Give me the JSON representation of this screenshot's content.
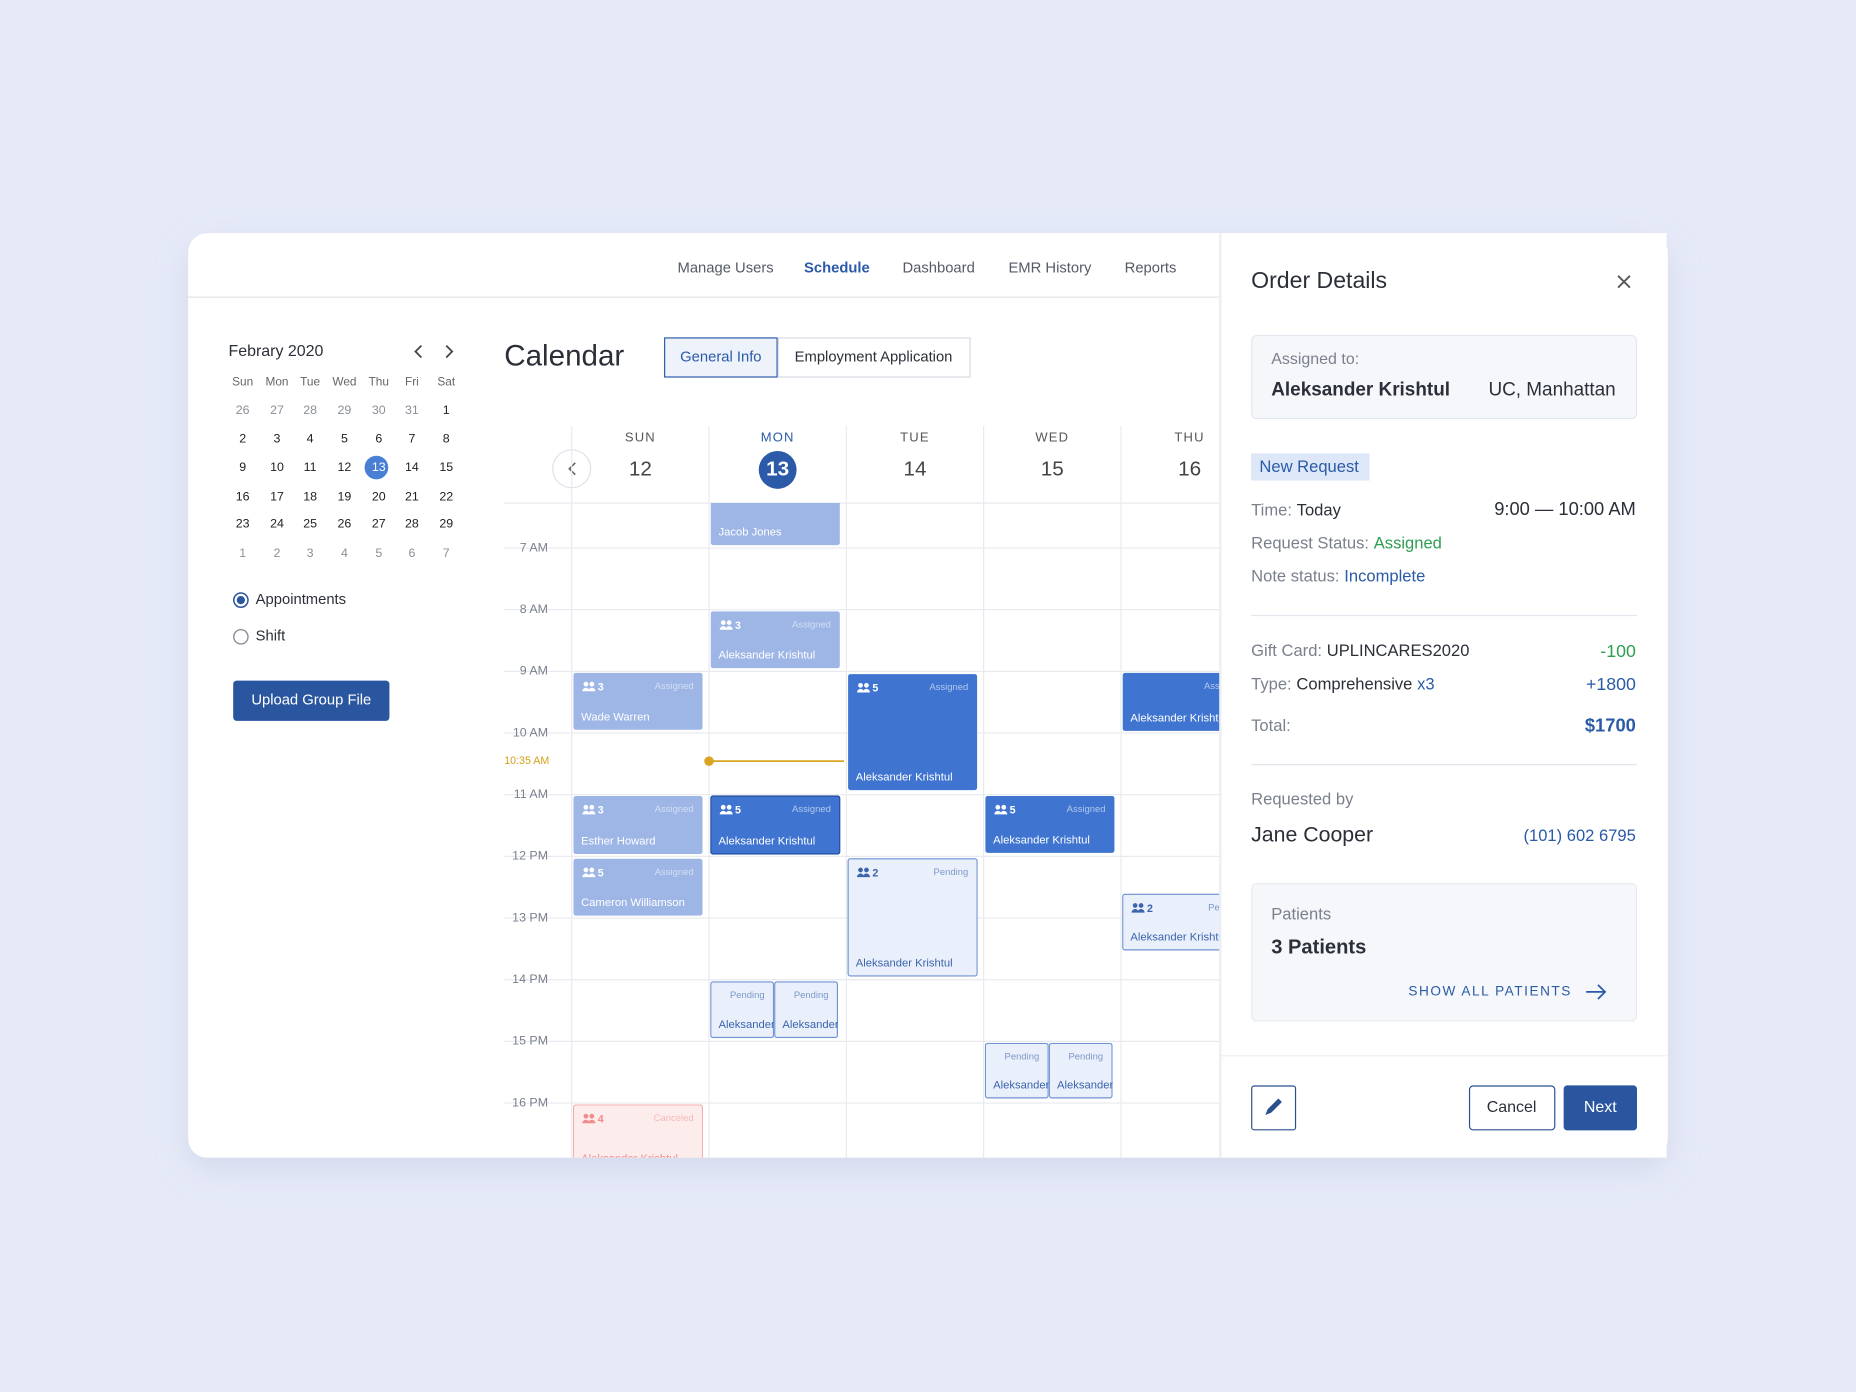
{
  "nav": [
    "Manage Users",
    "Schedule",
    "Dashboard",
    "EMR History",
    "Reports"
  ],
  "sidebar": {
    "month": "Febrary 2020",
    "weekdays": [
      "Sun",
      "Mon",
      "Tue",
      "Wed",
      "Thu",
      "Fri",
      "Sat"
    ],
    "weeks": [
      [
        26,
        27,
        28,
        29,
        30,
        31,
        1
      ],
      [
        2,
        3,
        4,
        5,
        6,
        7,
        8
      ],
      [
        9,
        10,
        11,
        12,
        13,
        14,
        15
      ],
      [
        16,
        17,
        18,
        19,
        20,
        21,
        22
      ],
      [
        23,
        24,
        25,
        26,
        27,
        28,
        29
      ],
      [
        1,
        2,
        3,
        4,
        5,
        6,
        7
      ]
    ],
    "options": [
      "Appointments",
      "Shift"
    ],
    "upload_button": "Upload Group File"
  },
  "calendar": {
    "title": "Calendar",
    "tabs": [
      "General Info",
      "Employment Application"
    ],
    "days": [
      {
        "name": "SUN",
        "date": "12"
      },
      {
        "name": "MON",
        "date": "13"
      },
      {
        "name": "TUE",
        "date": "14"
      },
      {
        "name": "WED",
        "date": "15"
      },
      {
        "name": "THU",
        "date": "16"
      }
    ],
    "hours": [
      "7 AM",
      "8 AM",
      "9 AM",
      "10 AM",
      "11 AM",
      "12 PM",
      "13 PM",
      "14 PM",
      "15 PM",
      "16 PM"
    ],
    "current_time": "10:35 AM",
    "events": [
      {
        "name": "Jacob Jones"
      },
      {
        "count": "3",
        "status": "Assigned",
        "name": "Aleksander Krishtul"
      },
      {
        "count": "3",
        "status": "Assigned",
        "name": "Wade Warren"
      },
      {
        "count": "5",
        "status": "Assigned",
        "name": "Aleksander Krishtul"
      },
      {
        "status": "Assigned",
        "name": "Aleksander Krishtul"
      },
      {
        "count": "3",
        "status": "Assigned",
        "name": "Esther Howard"
      },
      {
        "count": "5",
        "status": "Assigned",
        "name": "Aleksander Krishtul"
      },
      {
        "count": "5",
        "status": "Assigned",
        "name": "Aleksander Krishtul"
      },
      {
        "count": "5",
        "status": "Assigned",
        "name": "Cameron Williamson"
      },
      {
        "count": "2",
        "status": "Pending",
        "name": "Aleksander Krishtul"
      },
      {
        "count": "2",
        "status": "Pending",
        "name": "Aleksander Krishtul"
      },
      {
        "status": "Pending",
        "name": "Aleksander Krishtul"
      },
      {
        "status": "Pending",
        "name": "Aleksander Krishtul"
      },
      {
        "status": "Pending",
        "name": "Aleksander Krishtul"
      },
      {
        "status": "Pending",
        "name": "Aleksander Krishtul"
      },
      {
        "count": "4",
        "status": "Canceled",
        "name": "Aleksander Krishtul"
      }
    ]
  },
  "order": {
    "title": "Order Details",
    "assigned_label": "Assigned to:",
    "assignee": "Aleksander Krishtul",
    "location": "UC, Manhattan",
    "badge": "New Request",
    "time_label": "Time:",
    "time_value": "Today",
    "time_range": "9:00 — 10:00 AM",
    "request_status_label": "Request Status:",
    "request_status": "Assigned",
    "note_status_label": "Note status:",
    "note_status": "Incomplete",
    "gift_card_label": "Gift Card:",
    "gift_card": "UPLINCARES2020",
    "gift_card_amount": "-100",
    "type_label": "Type:",
    "type": "Comprehensive",
    "type_qty": "x3",
    "type_amount": "+1800",
    "total_label": "Total:",
    "total": "$1700",
    "requested_by_label": "Requested by",
    "requester": "Jane Cooper",
    "phone": "(101) 602 6795",
    "patients_label": "Patients",
    "patients": "3 Patients",
    "show_all": "SHOW ALL PATIENTS",
    "cancel": "Cancel",
    "next": "Next"
  }
}
